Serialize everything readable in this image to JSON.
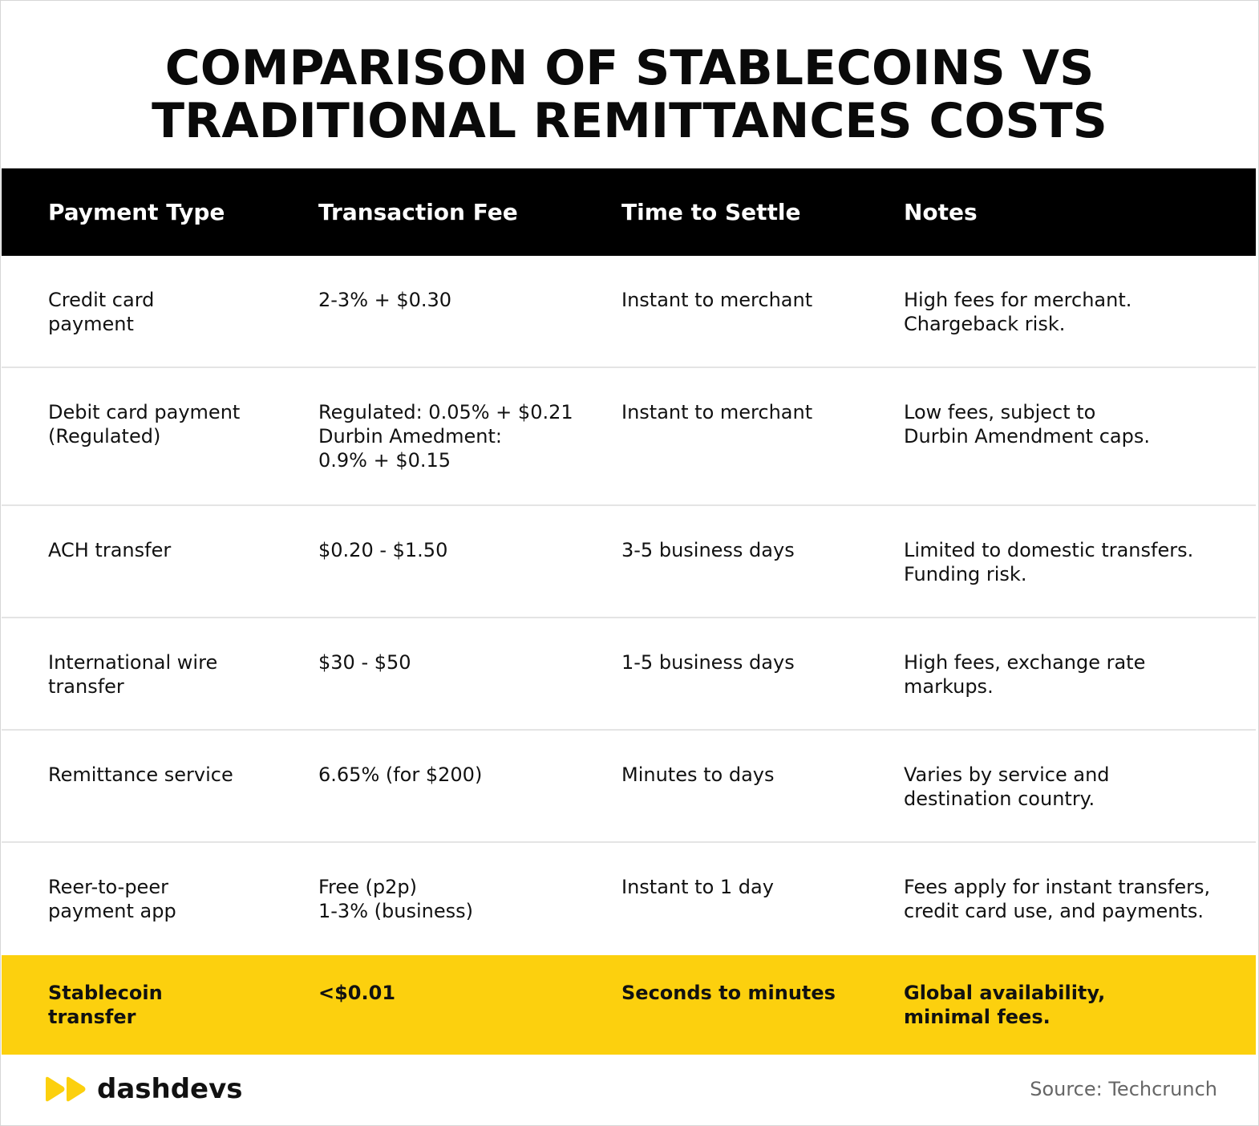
{
  "title": {
    "line1": "COMPARISON OF STABLECOINS VS",
    "line2": "TRADITIONAL REMITTANCES COSTS"
  },
  "table": {
    "headers": [
      "Payment Type",
      "Transaction Fee",
      "Time to Settle",
      "Notes"
    ],
    "rows": [
      {
        "payment_type": "Credit card\npayment",
        "fee": "2-3% + $0.30",
        "time": "Instant to merchant",
        "notes": "High fees for merchant.\nChargeback risk."
      },
      {
        "payment_type": "Debit card payment\n(Regulated)",
        "fee": "Regulated: 0.05% + $0.21\nDurbin Amedment:\n0.9% + $0.15",
        "time": "Instant to merchant",
        "notes": "Low fees, subject to\nDurbin Amendment caps."
      },
      {
        "payment_type": "ACH transfer",
        "fee": "$0.20 - $1.50",
        "time": "3-5 business days",
        "notes": "Limited to domestic transfers.\nFunding risk."
      },
      {
        "payment_type": "International wire\ntransfer",
        "fee": "$30 - $50",
        "time": "1-5 business days",
        "notes": "High fees, exchange rate\nmarkups."
      },
      {
        "payment_type": "Remittance service",
        "fee": "6.65% (for $200)",
        "time": "Minutes to days",
        "notes": "Varies by service and\ndestination country."
      },
      {
        "payment_type": "Reer-to-peer\npayment app",
        "fee": "Free (p2p)\n1-3% (business)",
        "time": "Instant to 1 day",
        "notes": "Fees apply for instant transfers,\ncredit card use, and payments."
      },
      {
        "payment_type": "Stablecoin\ntransfer",
        "fee": "<$0.01",
        "time": "Seconds to minutes",
        "notes": "Global availability,\nminimal fees."
      }
    ]
  },
  "footer": {
    "brand": "dashdevs",
    "source": "Source: Techcrunch"
  },
  "colors": {
    "header_bg": "#000000",
    "highlight_bg": "#fcd00e",
    "divider": "#e4e4e4",
    "logo_mark": "#fcd00e"
  },
  "icons": {
    "logo": "double-chevron-play-icon"
  }
}
